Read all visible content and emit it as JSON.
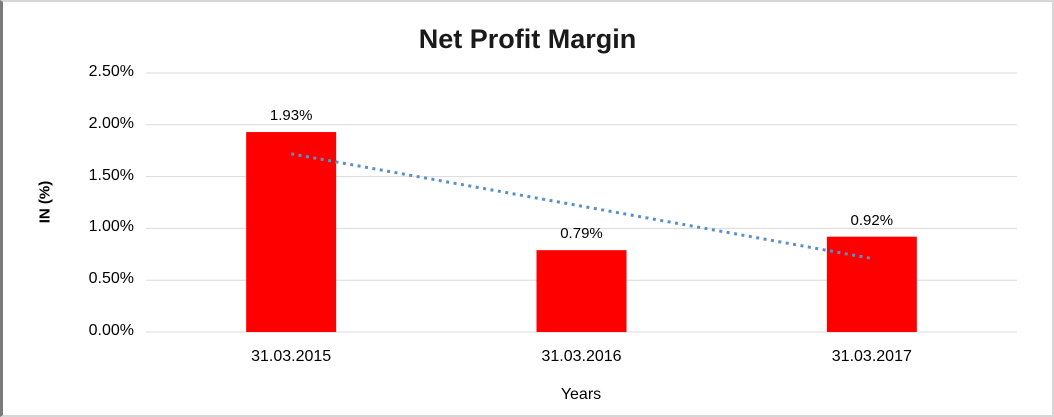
{
  "chart_data": {
    "type": "bar",
    "title": "Net Profit Margin",
    "xlabel": "Years",
    "ylabel": "IN (%)",
    "categories": [
      "31.03.2015",
      "31.03.2016",
      "31.03.2017"
    ],
    "values": [
      1.93,
      0.79,
      0.92
    ],
    "value_labels": [
      "1.93%",
      "0.79%",
      "0.92%"
    ],
    "ylim": [
      0,
      2.5
    ],
    "y_ticks": [
      {
        "label": "0.00%",
        "value": 0.0
      },
      {
        "label": "0.50%",
        "value": 0.5
      },
      {
        "label": "1.00%",
        "value": 1.0
      },
      {
        "label": "1.50%",
        "value": 1.5
      },
      {
        "label": "2.00%",
        "value": 2.0
      },
      {
        "label": "2.50%",
        "value": 2.5
      }
    ],
    "grid": true,
    "legend": "none",
    "colors": {
      "bar": "#FF0000",
      "gridline": "#D9D9D9",
      "trendline": "#5B8FC9",
      "text": "#000000"
    },
    "trendline": {
      "type": "linear",
      "style": "dotted",
      "y_start": 1.72,
      "y_end": 0.71
    }
  }
}
